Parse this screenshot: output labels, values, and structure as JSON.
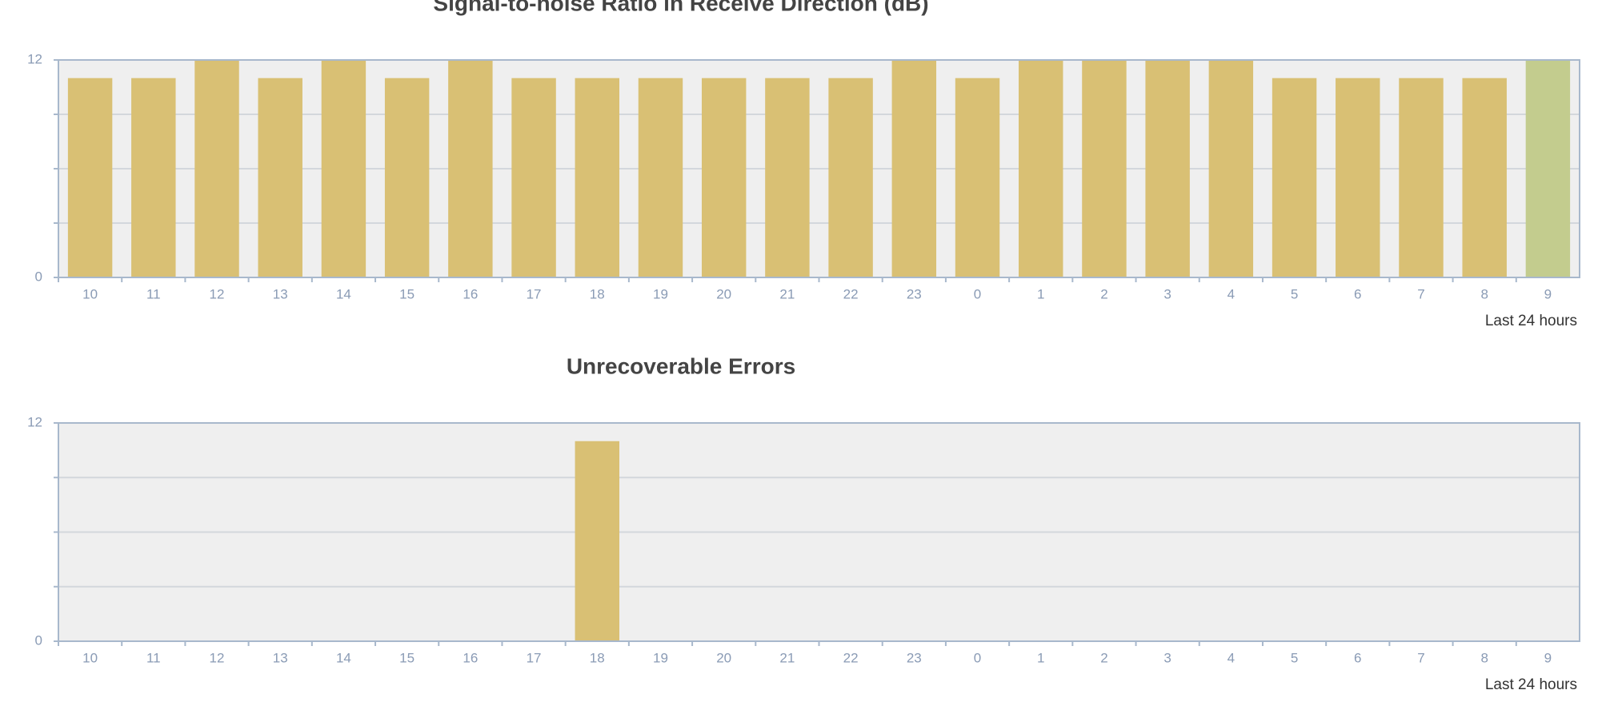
{
  "chart_data": [
    {
      "type": "bar",
      "title": "Signal-to-noise Ratio in Receive Direction (dB)",
      "x_label": "Last 24 hours",
      "categories": [
        "10",
        "11",
        "12",
        "13",
        "14",
        "15",
        "16",
        "17",
        "18",
        "19",
        "20",
        "21",
        "22",
        "23",
        "0",
        "1",
        "2",
        "3",
        "4",
        "5",
        "6",
        "7",
        "8",
        "9"
      ],
      "values": [
        11,
        11,
        12,
        11,
        12,
        11,
        12,
        11,
        11,
        11,
        11,
        11,
        11,
        12,
        11,
        12,
        12,
        12,
        12,
        11,
        11,
        11,
        11,
        12
      ],
      "colors": [
        "#d9c074",
        "#d9c074",
        "#d9c074",
        "#d9c074",
        "#d9c074",
        "#d9c074",
        "#d9c074",
        "#d9c074",
        "#d9c074",
        "#d9c074",
        "#d9c074",
        "#d9c074",
        "#d9c074",
        "#d9c074",
        "#d9c074",
        "#d9c074",
        "#d9c074",
        "#d9c074",
        "#d9c074",
        "#d9c074",
        "#d9c074",
        "#d9c074",
        "#d9c074",
        "#c3cc8e"
      ],
      "ylim": [
        0,
        12
      ],
      "yticks": [
        0,
        12
      ],
      "minor_yticks": [
        3,
        6,
        9
      ],
      "grid": true
    },
    {
      "type": "bar",
      "title": "Unrecoverable Errors",
      "x_label": "Last 24 hours",
      "categories": [
        "10",
        "11",
        "12",
        "13",
        "14",
        "15",
        "16",
        "17",
        "18",
        "19",
        "20",
        "21",
        "22",
        "23",
        "0",
        "1",
        "2",
        "3",
        "4",
        "5",
        "6",
        "7",
        "8",
        "9"
      ],
      "values": [
        0,
        0,
        0,
        0,
        0,
        0,
        0,
        0,
        11,
        0,
        0,
        0,
        0,
        0,
        0,
        0,
        0,
        0,
        0,
        0,
        0,
        0,
        0,
        0
      ],
      "colors": [
        "#d9c074",
        "#d9c074",
        "#d9c074",
        "#d9c074",
        "#d9c074",
        "#d9c074",
        "#d9c074",
        "#d9c074",
        "#d9c074",
        "#d9c074",
        "#d9c074",
        "#d9c074",
        "#d9c074",
        "#d9c074",
        "#d9c074",
        "#d9c074",
        "#d9c074",
        "#d9c074",
        "#d9c074",
        "#d9c074",
        "#d9c074",
        "#d9c074",
        "#d9c074",
        "#d9c074"
      ],
      "ylim": [
        0,
        12
      ],
      "yticks": [
        0,
        12
      ],
      "minor_yticks": [
        3,
        6,
        9
      ],
      "grid": true
    }
  ]
}
